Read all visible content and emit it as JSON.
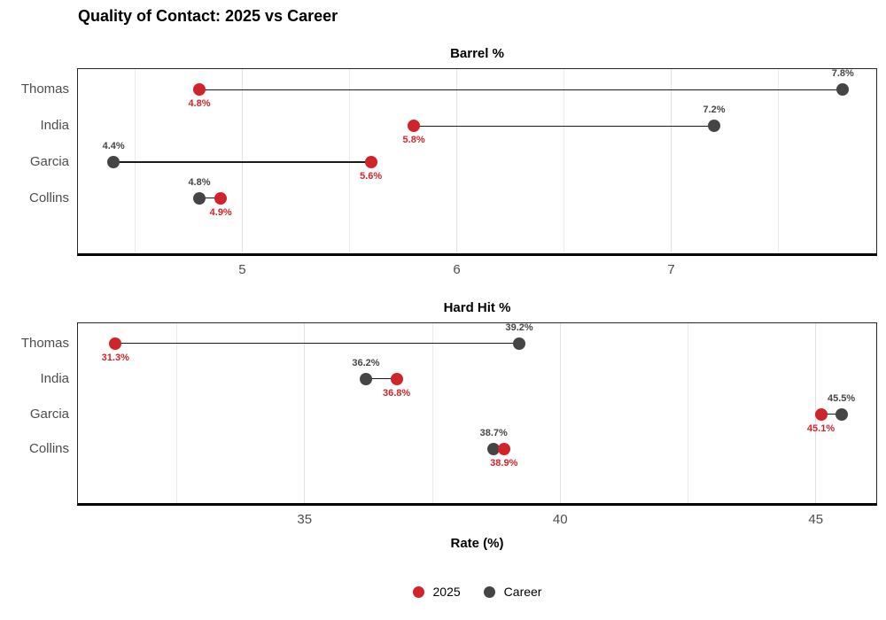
{
  "title": "Quality of Contact: 2025 vs Career",
  "xlabel": "Rate (%)",
  "colors": {
    "red": "#d0242a",
    "gray": "#454545",
    "grid_major": "#e2e2e2",
    "grid_minor": "#ebebeb",
    "axis_text": "#4d4d4d",
    "connector": "#1a1a1a",
    "panel_border": "#262626"
  },
  "legend": {
    "items": [
      {
        "name": "2025",
        "color_key": "red"
      },
      {
        "name": "Career",
        "color_key": "gray"
      }
    ]
  },
  "chart_data": [
    {
      "type": "scatter",
      "variant": "dumbbell",
      "title": "Barrel %",
      "categories": [
        "Thomas",
        "India",
        "Garcia",
        "Collins"
      ],
      "xlim": [
        4.23,
        7.96
      ],
      "xticks": [
        5,
        6,
        7
      ],
      "xticks_minor": [
        4.5,
        5.5,
        6.5,
        7.5
      ],
      "series": [
        {
          "name": "2025",
          "color_key": "red",
          "label_side": "below",
          "values": [
            4.8,
            5.8,
            5.6,
            4.9
          ],
          "labels": [
            "4.8%",
            "5.8%",
            "5.6%",
            "4.9%"
          ]
        },
        {
          "name": "Career",
          "color_key": "gray",
          "label_side": "above",
          "values": [
            7.8,
            7.2,
            4.4,
            4.8
          ],
          "labels": [
            "7.8%",
            "7.2%",
            "4.4%",
            "4.8%"
          ]
        }
      ]
    },
    {
      "type": "scatter",
      "variant": "dumbbell",
      "title": "Hard Hit %",
      "categories": [
        "Thomas",
        "India",
        "Garcia",
        "Collins"
      ],
      "xlim": [
        30.55,
        46.2
      ],
      "xticks": [
        35,
        40,
        45
      ],
      "xticks_minor": [
        32.5,
        37.5,
        42.5
      ],
      "series": [
        {
          "name": "2025",
          "color_key": "red",
          "label_side": "below",
          "values": [
            31.3,
            36.8,
            45.1,
            38.9
          ],
          "labels": [
            "31.3%",
            "36.8%",
            "45.1%",
            "38.9%"
          ]
        },
        {
          "name": "Career",
          "color_key": "gray",
          "label_side": "above",
          "values": [
            39.2,
            36.2,
            45.5,
            38.7
          ],
          "labels": [
            "39.2%",
            "36.2%",
            "45.5%",
            "38.7%"
          ]
        }
      ]
    }
  ]
}
